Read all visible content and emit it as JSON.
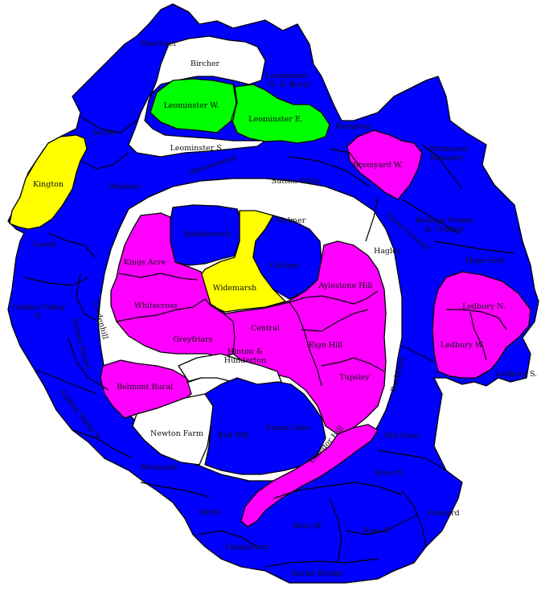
{
  "colors": {
    "blue": "#0000ff",
    "magenta": "#ff00ff",
    "green": "#00ff00",
    "yellow": "#ffff00",
    "white": "#ffffff",
    "border": "#000000"
  },
  "labels": {
    "mortimer": "Mortimer",
    "bircher": "Bircher",
    "leominster_n_rural_1": "Leominster",
    "leominster_n_rural_2": "N. & Rural",
    "leominster_w": "Leominster W.",
    "leominster_e": "Leominster E.",
    "leominster_s": "Leominster S.",
    "arrow": "Arrow",
    "hampton": "Hampton",
    "bromyard_bringsty_1": "Bromyard",
    "bromyard_bringsty_2": "Bringsty",
    "kington": "Kington",
    "weobley": "Weobley",
    "queenswood": "Queenswood",
    "sutton_walls": "Sutton Walls",
    "bromyard_w": "Bromyard W.",
    "holmer": "Holmer",
    "bobblestock": "Bobblestock",
    "castle": "Castle",
    "kings_acre": "Kings Acre",
    "college": "College",
    "hagley": "Hagley",
    "three_crosses": "Three Crosses",
    "bishops_frome_1": "Bishops Frome",
    "bishops_frome_2": "& Cradley",
    "hope_end": "Hope End",
    "widemarsh": "Widemarsh",
    "aylestone_hill": "Aylestone Hill",
    "golden_valley_n_1": "Golden Valley",
    "golden_valley_n_2": "N.",
    "whitecross": "Whitecross",
    "credenhill": "Credenhill",
    "ledbury_n": "Ledbury N.",
    "central": "Central",
    "greyfriars": "Greyfriars",
    "eign_hill": "Eign Hill",
    "ledbury_w": "Ledbury W.",
    "stoney_street": "Stoney Street",
    "hinton_1": "Hinton &",
    "hinton_2": "Hunderton",
    "ledbury_s": "Ledbury S.",
    "tupsley": "Tupsley",
    "backbury": "Backbury",
    "belmont_rural": "Belmont Rural",
    "golden_valley_s": "Golden Valley S.",
    "newton_farm": "Newton Farm",
    "red_hill": "Red Hill",
    "saxon_gate": "Saxon Gate",
    "dinedor_hill": "Dinedor Hill",
    "old_gore": "Old Gore",
    "wormside": "Wormside",
    "ross_n": "Ross N.",
    "birch": "Birch",
    "penyard": "Penyard",
    "ross_w": "Ross W.",
    "ross_e": "Ross E.",
    "llangarron": "Llangarron",
    "kerne_bridge": "Kerne Bridge"
  }
}
